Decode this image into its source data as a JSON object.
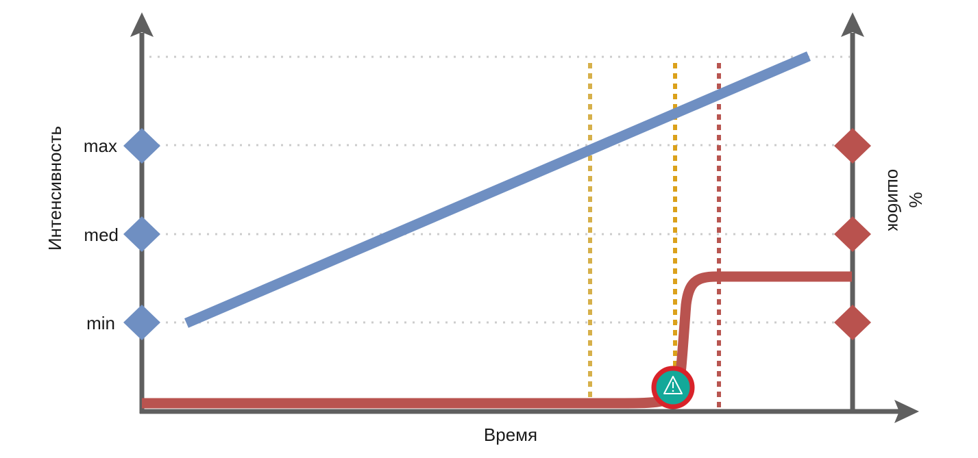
{
  "diagram": {
    "x_axis_label": "Время",
    "left_axis_label": "Интенсивность",
    "right_axis_label_line1": "%",
    "right_axis_label_line2": "ошибок",
    "levels": [
      "min",
      "med",
      "max"
    ],
    "warning_icon": "warning-triangle-icon",
    "colors": {
      "axis": "#5f5f5f",
      "intensity_line": "#6f8fc2",
      "error_line": "#b9534f",
      "left_markers": "#6f8fc2",
      "right_markers": "#b9524e",
      "marker_line_1": "#d6b04a",
      "marker_line_2": "#dba11b",
      "marker_line_3": "#b85550",
      "grid": "#cccccc",
      "warning_ring": "#d8232a",
      "warning_fill": "#13a899"
    }
  }
}
